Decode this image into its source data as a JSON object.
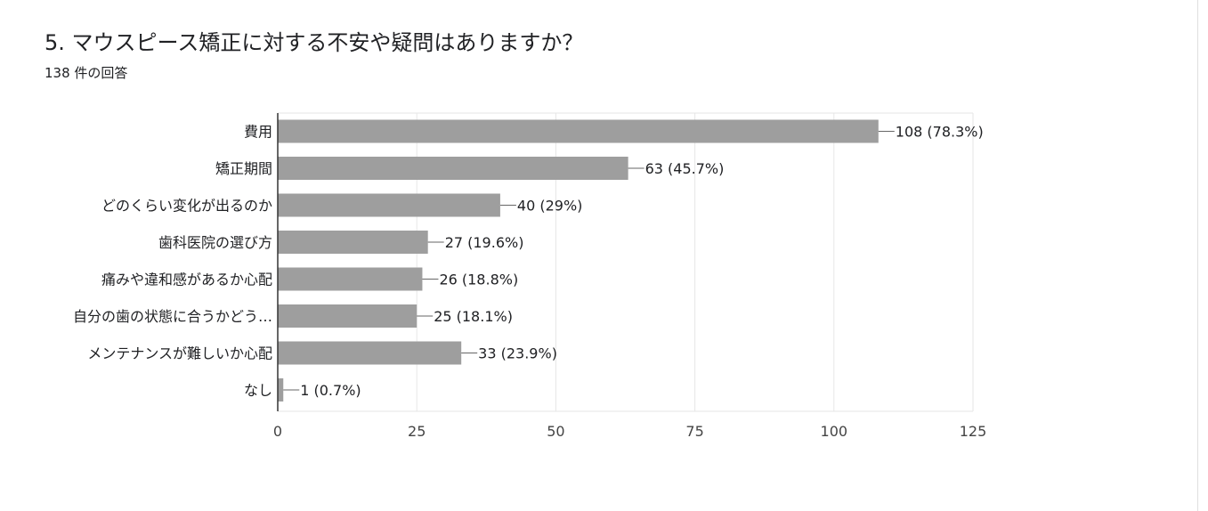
{
  "header": {
    "title": "5. マウスピース矯正に対する不安や疑問はありますか？",
    "response_count": "138 件の回答"
  },
  "colors": {
    "bar": "#9e9e9e",
    "grid": "#e6e6e6",
    "axis": "#333333"
  },
  "chart_data": {
    "type": "bar",
    "orientation": "horizontal",
    "title": "",
    "xlabel": "",
    "ylabel": "",
    "categories": [
      "費用",
      "矯正期間",
      "どのくらい変化が出るのか",
      "歯科医院の選び方",
      "痛みや違和感があるか心配",
      "自分の歯の状態に合うかどう…",
      "メンテナンスが難しいか心配",
      "なし"
    ],
    "values": [
      108,
      63,
      40,
      27,
      26,
      25,
      33,
      1
    ],
    "data_labels": [
      "108 (78.3%)",
      "63 (45.7%)",
      "40 (29%)",
      "27 (19.6%)",
      "26 (18.8%)",
      "25 (18.1%)",
      "33 (23.9%)",
      "1 (0.7%)"
    ],
    "xlim": [
      0,
      125
    ],
    "xticks": [
      0,
      25,
      50,
      75,
      100,
      125
    ],
    "grid": true,
    "legend": "none"
  }
}
